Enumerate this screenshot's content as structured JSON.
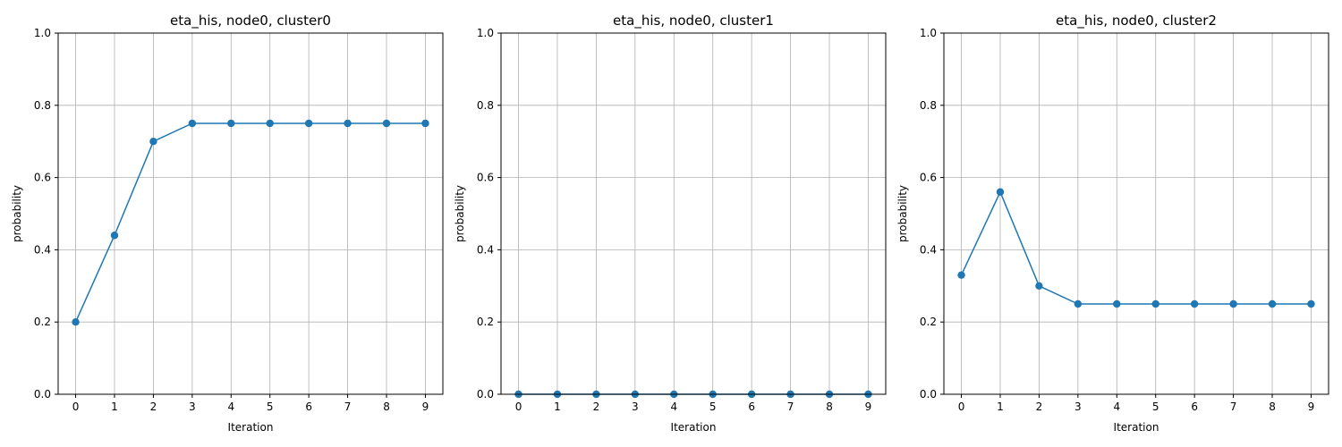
{
  "chart_data": [
    {
      "type": "line",
      "title": "eta_his, node0, cluster0",
      "xlabel": "Iteration",
      "ylabel": "probability",
      "x": [
        0,
        1,
        2,
        3,
        4,
        5,
        6,
        7,
        8,
        9
      ],
      "series": [
        {
          "values": [
            0.2,
            0.44,
            0.7,
            0.75,
            0.75,
            0.75,
            0.75,
            0.75,
            0.75,
            0.75
          ]
        }
      ],
      "xticks": [
        "0",
        "1",
        "2",
        "3",
        "4",
        "5",
        "6",
        "7",
        "8",
        "9"
      ],
      "yticks": [
        "0.0",
        "0.2",
        "0.4",
        "0.6",
        "0.8",
        "1.0"
      ],
      "ylim": [
        0,
        1
      ],
      "grid": true,
      "marker": "circle",
      "color": "#1f77b4"
    },
    {
      "type": "line",
      "title": "eta_his, node0, cluster1",
      "xlabel": "Iteration",
      "ylabel": "probability",
      "x": [
        0,
        1,
        2,
        3,
        4,
        5,
        6,
        7,
        8,
        9
      ],
      "series": [
        {
          "values": [
            0,
            0,
            0,
            0,
            0,
            0,
            0,
            0,
            0,
            0
          ]
        }
      ],
      "xticks": [
        "0",
        "1",
        "2",
        "3",
        "4",
        "5",
        "6",
        "7",
        "8",
        "9"
      ],
      "yticks": [
        "0.0",
        "0.2",
        "0.4",
        "0.6",
        "0.8",
        "1.0"
      ],
      "ylim": [
        0,
        1
      ],
      "grid": true,
      "marker": "circle",
      "color": "#1f77b4"
    },
    {
      "type": "line",
      "title": "eta_his, node0, cluster2",
      "xlabel": "Iteration",
      "ylabel": "probability",
      "x": [
        0,
        1,
        2,
        3,
        4,
        5,
        6,
        7,
        8,
        9
      ],
      "series": [
        {
          "values": [
            0.33,
            0.56,
            0.3,
            0.25,
            0.25,
            0.25,
            0.25,
            0.25,
            0.25,
            0.25
          ]
        }
      ],
      "xticks": [
        "0",
        "1",
        "2",
        "3",
        "4",
        "5",
        "6",
        "7",
        "8",
        "9"
      ],
      "yticks": [
        "0.0",
        "0.2",
        "0.4",
        "0.6",
        "0.8",
        "1.0"
      ],
      "ylim": [
        0,
        1
      ],
      "grid": true,
      "marker": "circle",
      "color": "#1f77b4"
    }
  ]
}
